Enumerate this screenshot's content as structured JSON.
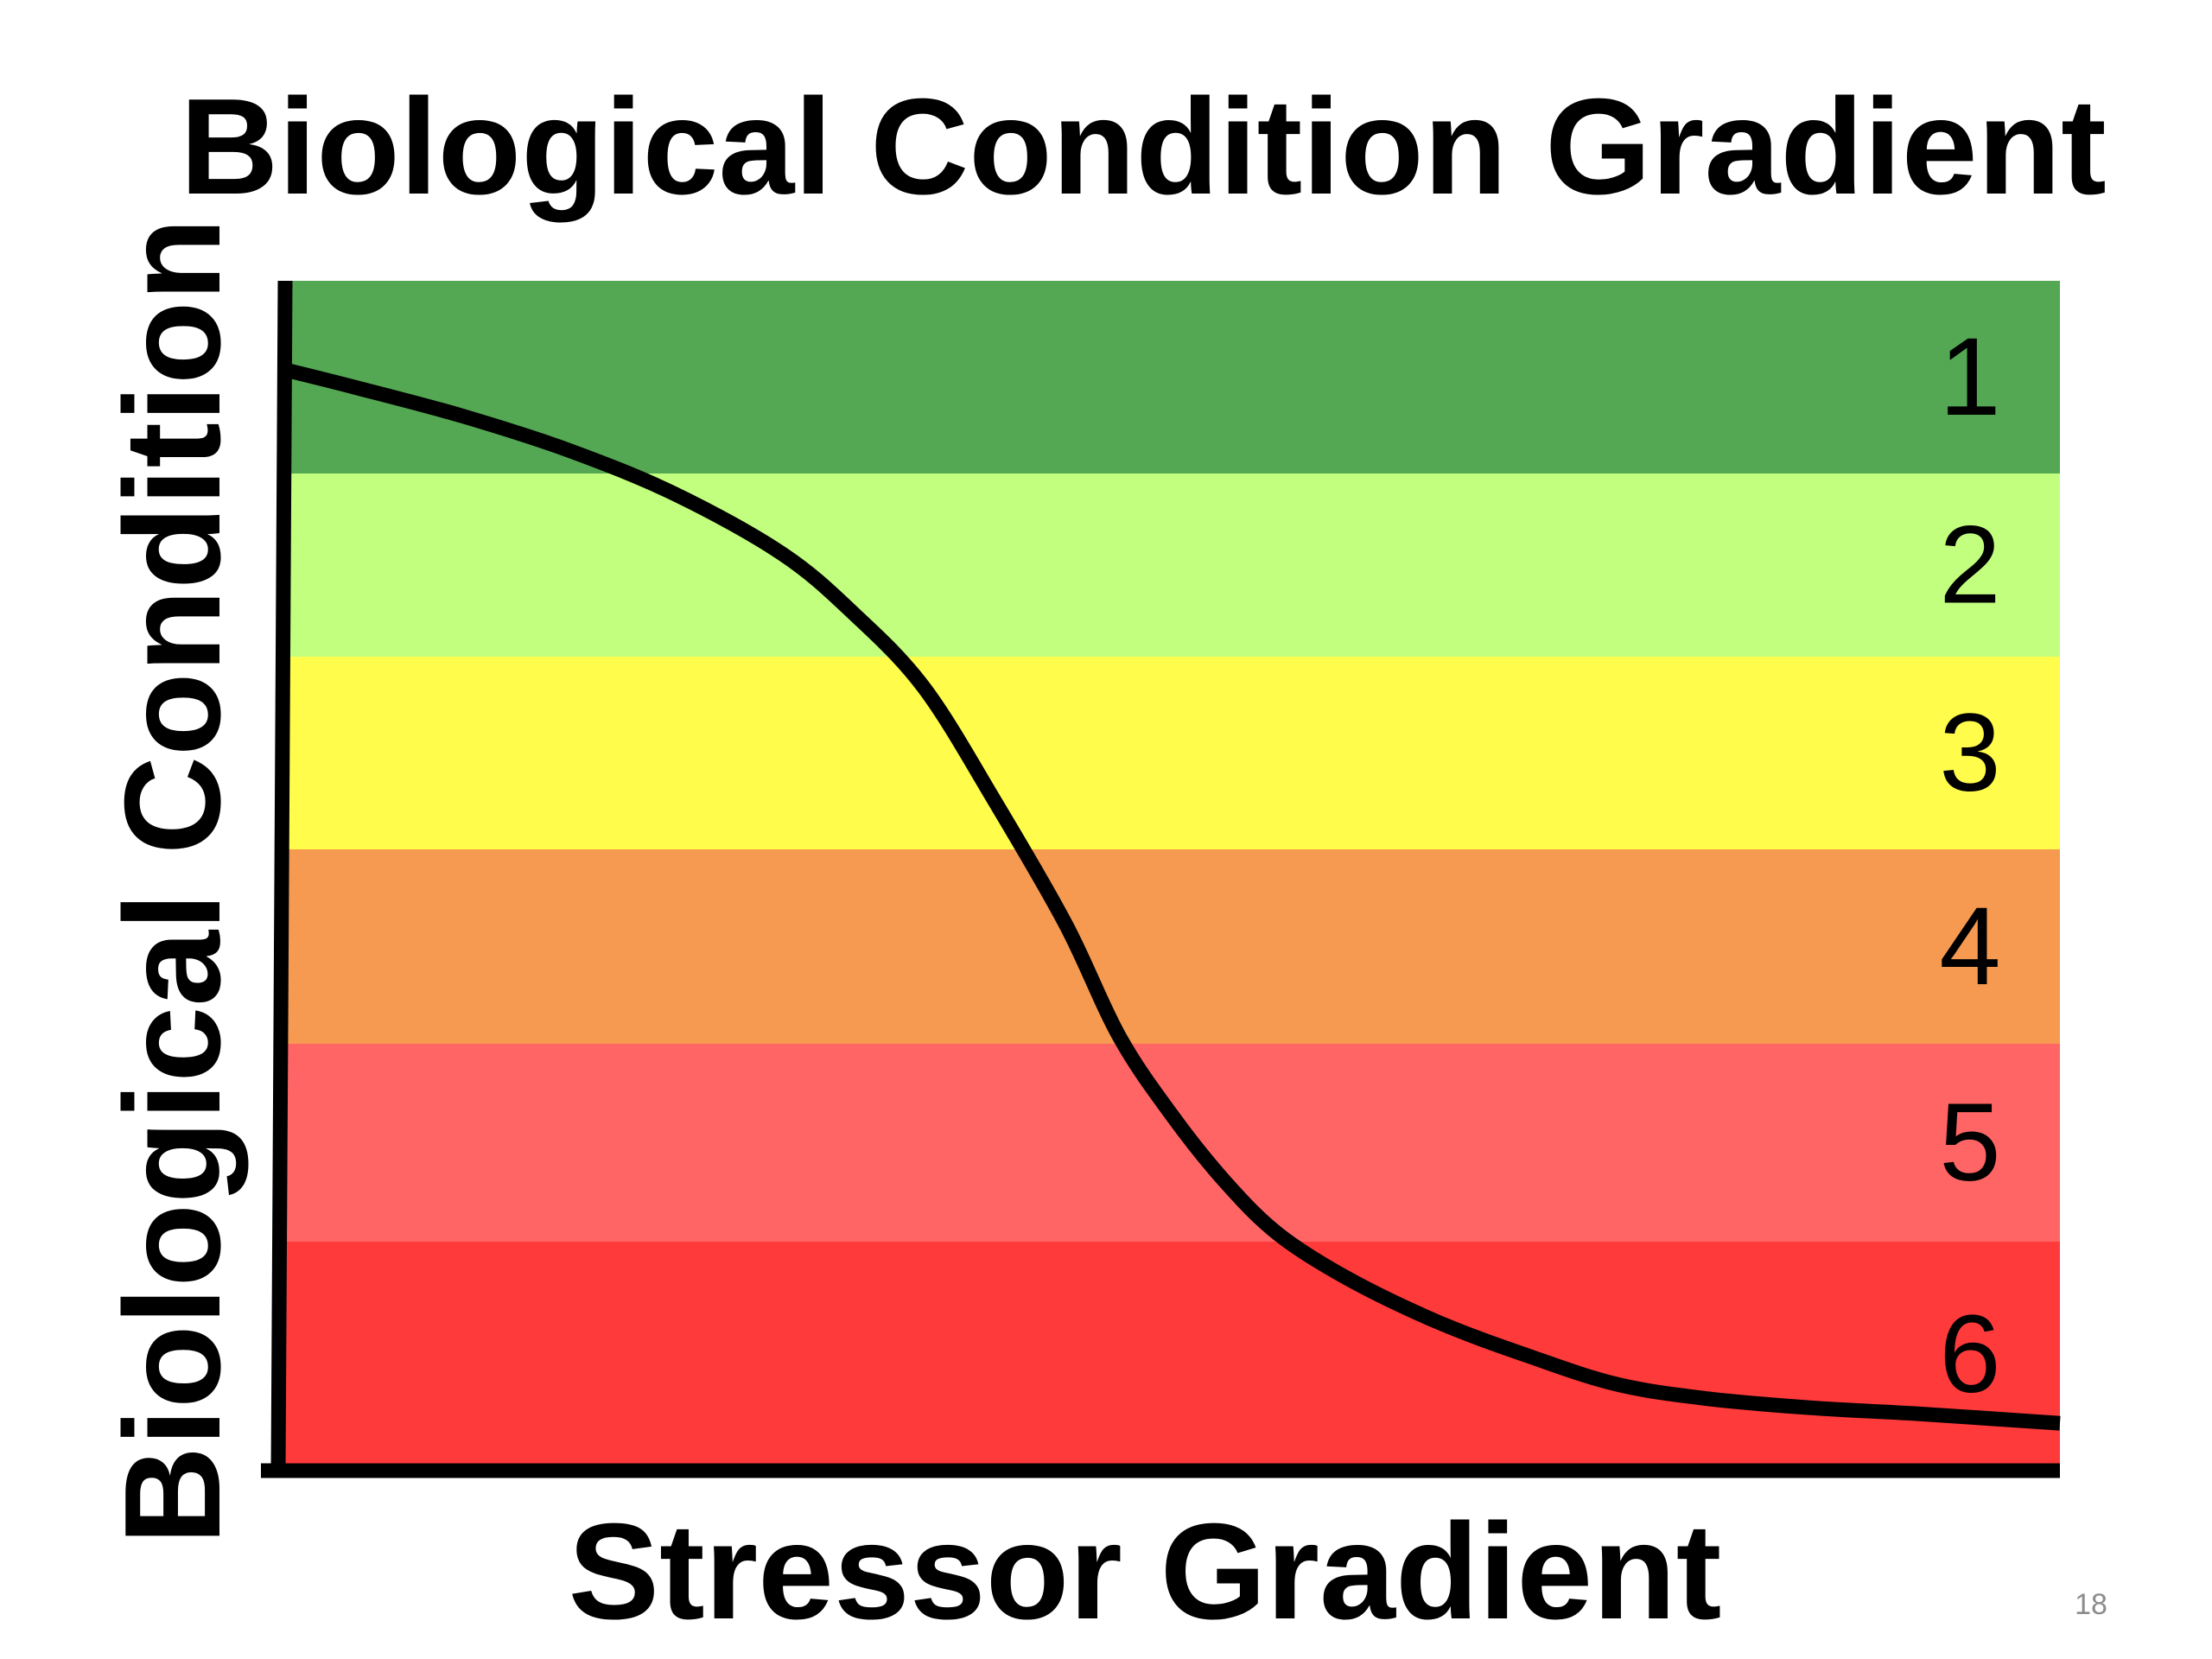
{
  "slide": {
    "page_number": "18"
  },
  "chart_data": {
    "type": "area",
    "title": "Biological Condition Gradient",
    "xlabel": "Stressor Gradient",
    "ylabel": "Biological Condition",
    "grid": false,
    "legend": "none",
    "bands": [
      {
        "label": "1",
        "color": "#55a853"
      },
      {
        "label": "2",
        "color": "#c2ff7f"
      },
      {
        "label": "3",
        "color": "#fffc4c"
      },
      {
        "label": "4",
        "color": "#f59a50"
      },
      {
        "label": "5",
        "color": "#ff6565"
      },
      {
        "label": "6",
        "color": "#ff3a3a"
      }
    ],
    "curve": {
      "color": "#000000",
      "x": [
        0,
        0.04,
        0.1,
        0.16,
        0.22,
        0.28,
        0.32,
        0.36,
        0.4,
        0.44,
        0.47,
        0.5,
        0.53,
        0.56,
        0.6,
        0.65,
        0.7,
        0.75,
        0.8,
        0.86,
        0.92,
        1.0
      ],
      "y": [
        0.925,
        0.91,
        0.886,
        0.857,
        0.82,
        0.77,
        0.72,
        0.657,
        0.561,
        0.457,
        0.363,
        0.296,
        0.24,
        0.196,
        0.158,
        0.122,
        0.094,
        0.07,
        0.058,
        0.05,
        0.045,
        0.037
      ]
    }
  }
}
